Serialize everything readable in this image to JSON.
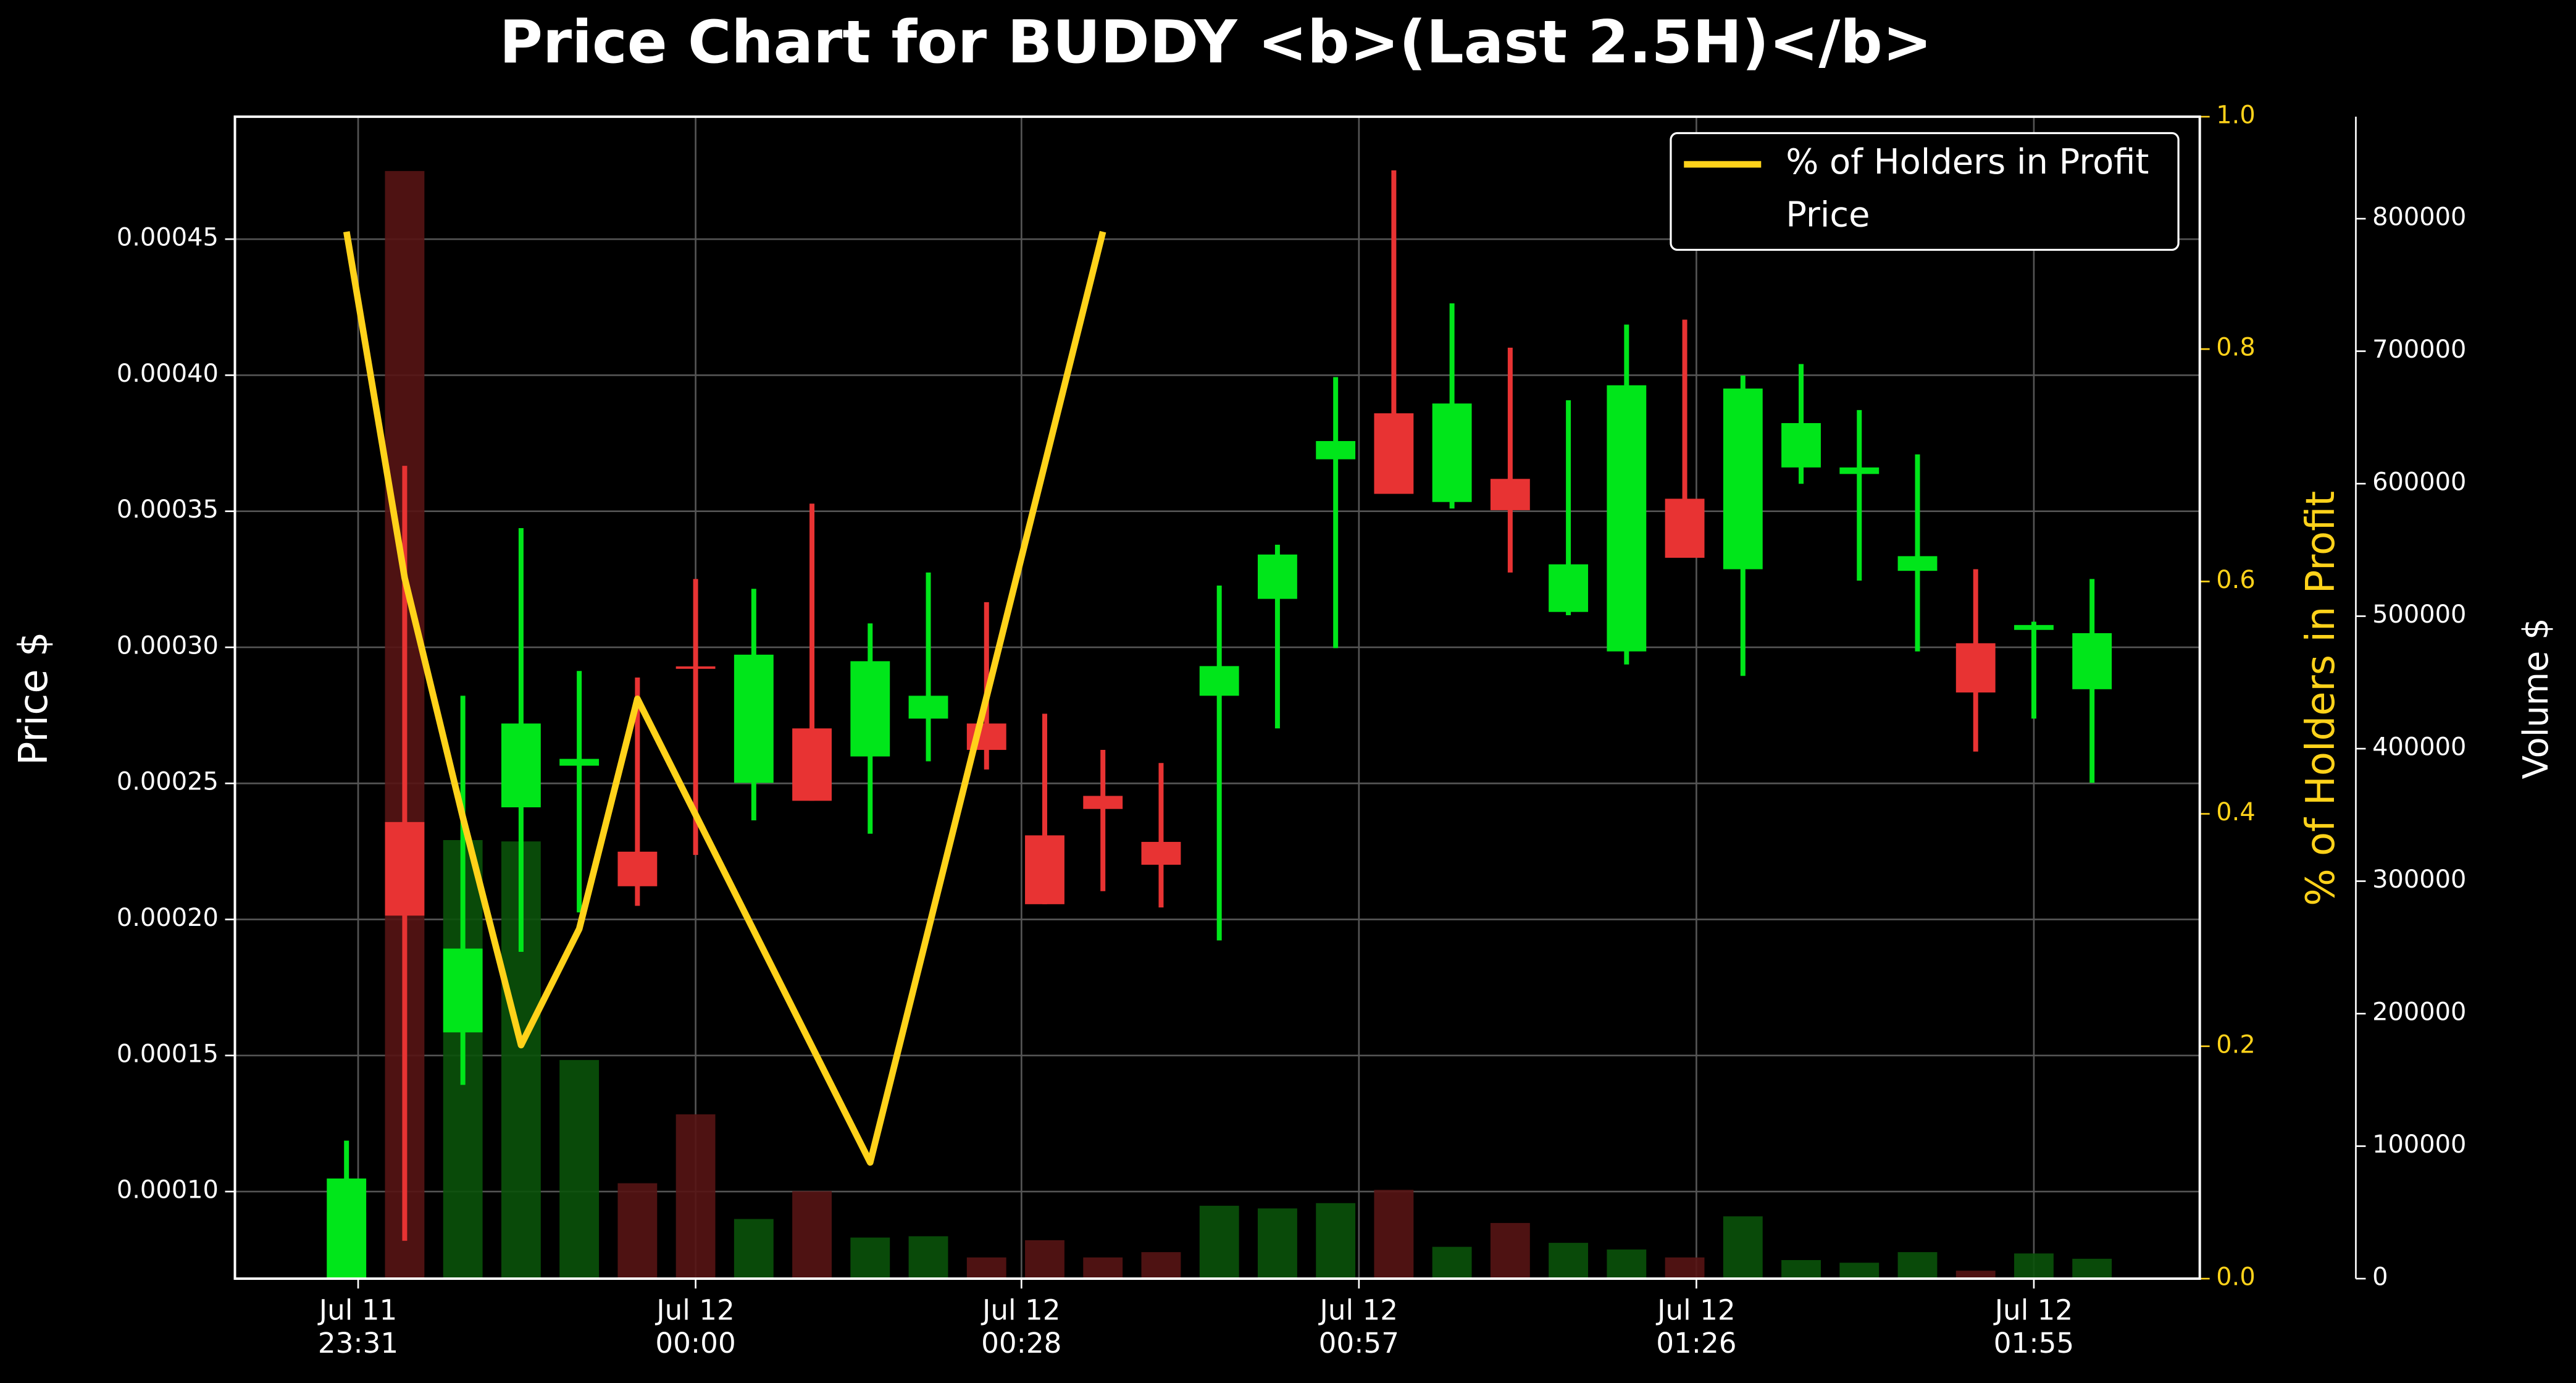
{
  "chart_data": {
    "type": "candlestick",
    "title": "Price Chart for BUDDY <b>(Last 2.5H)</b>",
    "ylabel": "Price $",
    "y2label": "% of Holders in Profit",
    "y3label": "Volume $",
    "candles_name": "Price",
    "up_color": "#00e61a",
    "down_color": "#e83333",
    "volume_up_color": "#0a520a",
    "volume_down_color": "#561414",
    "x": [
      "Jul 11 23:30",
      "Jul 11 23:35",
      "Jul 11 23:40",
      "Jul 11 23:45",
      "Jul 11 23:50",
      "Jul 11 23:55",
      "Jul 12 00:00",
      "Jul 12 00:05",
      "Jul 12 00:10",
      "Jul 12 00:15",
      "Jul 12 00:20",
      "Jul 12 00:25",
      "Jul 12 00:30",
      "Jul 12 00:35",
      "Jul 12 00:40",
      "Jul 12 00:45",
      "Jul 12 00:50",
      "Jul 12 00:55",
      "Jul 12 01:00",
      "Jul 12 01:05",
      "Jul 12 01:10",
      "Jul 12 01:15",
      "Jul 12 01:20",
      "Jul 12 01:25",
      "Jul 12 01:30",
      "Jul 12 01:35",
      "Jul 12 01:40",
      "Jul 12 01:45",
      "Jul 12 01:50",
      "Jul 12 01:55",
      "Jul 12 02:00"
    ],
    "open": [
      6.5e-05,
      0.0002358,
      0.0001585,
      0.0002412,
      0.0002565,
      0.0002249,
      0.000293,
      0.0002502,
      0.0002702,
      0.0002599,
      0.0002738,
      0.000272,
      0.0002309,
      0.0002454,
      0.0002285,
      0.0002822,
      0.0003178,
      0.0003691,
      0.000386,
      0.0003534,
      0.0003619,
      0.000313,
      0.0002985,
      0.0003546,
      0.0003287,
      0.0003661,
      0.0003637,
      0.0003281,
      0.0003015,
      0.0003064,
      0.0002846
    ],
    "high": [
      0.0001187,
      0.0003667,
      0.0002822,
      0.0003438,
      0.0002913,
      0.0002889,
      0.0003251,
      0.0003215,
      0.0003528,
      0.0003088,
      0.0003275,
      0.0003166,
      0.0002756,
      0.0002623,
      0.0002575,
      0.0003227,
      0.0003377,
      0.0003993,
      0.0004753,
      0.0004264,
      0.0004101,
      0.0003908,
      0.0004186,
      0.0004204,
      0.0003999,
      0.0004041,
      0.0003872,
      0.0003709,
      0.0003287,
      0.0003094,
      0.0003251
    ],
    "low": [
      6.5e-05,
      8.19e-05,
      0.0001392,
      0.0001881,
      0.0002026,
      0.000205,
      0.0002237,
      0.0002364,
      0.0002436,
      0.0002315,
      0.0002581,
      0.0002551,
      0.0002056,
      0.0002104,
      0.0002044,
      0.0001923,
      0.0002702,
      0.0002997,
      0.0003564,
      0.000351,
      0.0003275,
      0.0003118,
      0.0002937,
      0.0003329,
      0.0002895,
      0.0003601,
      0.0003245,
      0.0002985,
      0.0002617,
      0.0002738,
      0.0002502
    ],
    "close": [
      0.0001048,
      0.0002014,
      0.0001893,
      0.000272,
      0.000259,
      0.0002122,
      0.0002925,
      0.0002973,
      0.0002436,
      0.0002949,
      0.0002822,
      0.0002623,
      0.0002056,
      0.0002406,
      0.0002201,
      0.0002931,
      0.0003341,
      0.0003758,
      0.0003564,
      0.0003896,
      0.0003504,
      0.0003305,
      0.0003963,
      0.0003329,
      0.0003951,
      0.0003824,
      0.0003661,
      0.0003335,
      0.0002834,
      0.0003082,
      0.0003052
    ],
    "volume": [
      50000,
      836000,
      331000,
      330000,
      165000,
      72000,
      124000,
      45000,
      66000,
      31000,
      32000,
      16000,
      29000,
      16000,
      20000,
      55000,
      53000,
      57000,
      67000,
      24000,
      42000,
      27000,
      22000,
      16000,
      47000,
      14000,
      12000,
      20000,
      6000,
      19000,
      15000
    ],
    "series": [
      {
        "name": "% of Holders in Profit",
        "color": "#ffd21a",
        "axis": "y2",
        "x": [
          "Jul 11 23:30",
          "Jul 11 23:35",
          "Jul 11 23:40",
          "Jul 11 23:45",
          "Jul 11 23:50",
          "Jul 11 23:55",
          "Jul 12 00:15",
          "Jul 12 00:35"
        ],
        "values": [
          0.901,
          0.603,
          0.397,
          0.201,
          0.301,
          0.499,
          0.1,
          0.901
        ]
      }
    ],
    "xticks": [
      {
        "value": "Jul 11 23:31",
        "label": "Jul 11\n23:31"
      },
      {
        "value": "Jul 12 00:00",
        "label": "Jul 12\n00:00"
      },
      {
        "value": "Jul 12 00:28",
        "label": "Jul 12\n00:28"
      },
      {
        "value": "Jul 12 00:57",
        "label": "Jul 12\n00:57"
      },
      {
        "value": "Jul 12 01:26",
        "label": "Jul 12\n01:26"
      },
      {
        "value": "Jul 12 01:55",
        "label": "Jul 12\n01:55"
      }
    ],
    "ylim": [
      6.8e-05,
      0.000495
    ],
    "yticks": [
      {
        "value": 0.0001,
        "label": "0.00010"
      },
      {
        "value": 0.00015,
        "label": "0.00015"
      },
      {
        "value": 0.0002,
        "label": "0.00020"
      },
      {
        "value": 0.00025,
        "label": "0.00025"
      },
      {
        "value": 0.0003,
        "label": "0.00030"
      },
      {
        "value": 0.00035,
        "label": "0.00035"
      },
      {
        "value": 0.0004,
        "label": "0.00040"
      },
      {
        "value": 0.00045,
        "label": "0.00045"
      }
    ],
    "y2lim": [
      0,
      1
    ],
    "y2ticks": [
      {
        "value": 0,
        "label": "0.0"
      },
      {
        "value": 0.2,
        "label": "0.2"
      },
      {
        "value": 0.4,
        "label": "0.4"
      },
      {
        "value": 0.6,
        "label": "0.6"
      },
      {
        "value": 0.8,
        "label": "0.8"
      },
      {
        "value": 1,
        "label": "1.0"
      }
    ],
    "y3lim": [
      0,
      877000
    ],
    "y3ticks": [
      0,
      100000,
      200000,
      300000,
      400000,
      500000,
      600000,
      700000,
      800000
    ],
    "grid": true,
    "legend": "upper right"
  }
}
